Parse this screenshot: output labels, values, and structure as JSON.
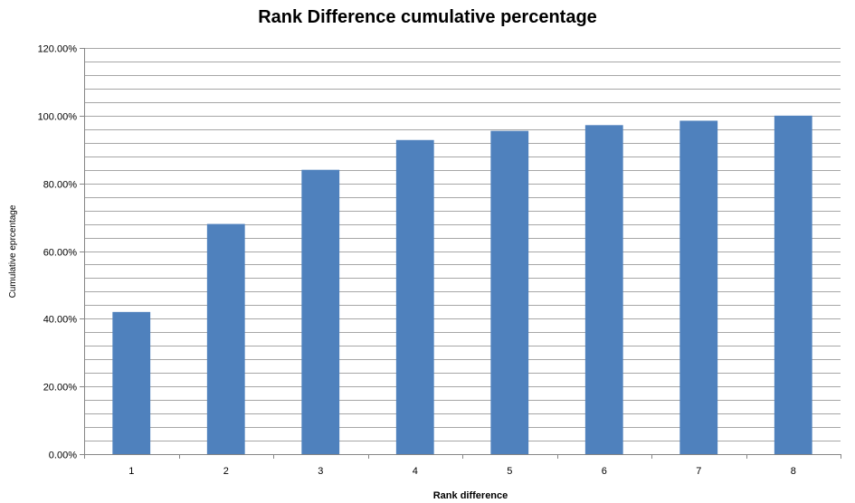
{
  "chart_data": {
    "type": "bar",
    "title": "Rank Difference cumulative percentage",
    "xlabel": "Rank difference",
    "ylabel": "Cumulative eprcentage",
    "categories": [
      "1",
      "2",
      "3",
      "4",
      "5",
      "6",
      "7",
      "8"
    ],
    "values": [
      42,
      68,
      84,
      92.8,
      95.5,
      97.2,
      98.5,
      100
    ],
    "ylim": [
      0,
      120
    ],
    "y_major_ticks": [
      0,
      20,
      40,
      60,
      80,
      100,
      120
    ],
    "y_tick_labels": [
      "0.00%",
      "20.00%",
      "40.00%",
      "60.00%",
      "80.00%",
      "100.00%",
      "120.00%"
    ],
    "y_minor_step": 4,
    "grid": true,
    "legend": "none",
    "bar_color": "#4F81BD",
    "grid_color": "#A6A6A6"
  }
}
